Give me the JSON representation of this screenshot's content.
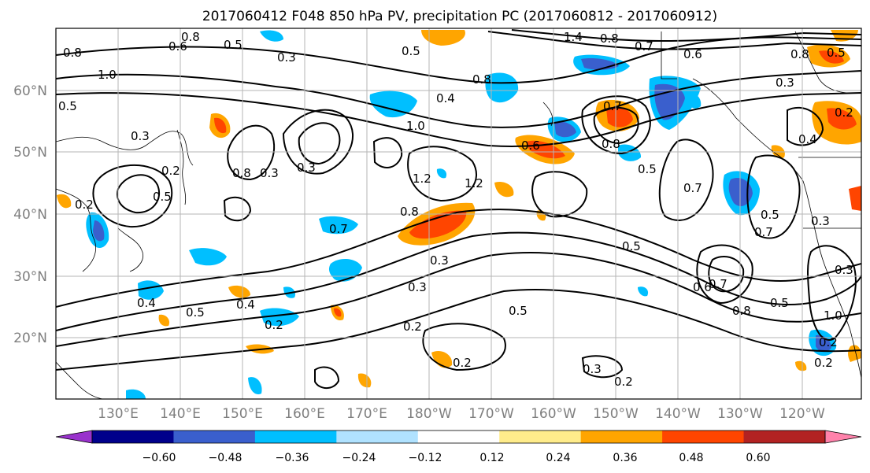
{
  "title": "2017060412 F048 850 hPa PV, precipitation PC (2017060812 - 2017060912)",
  "lat_labels": [
    "60°N",
    "50°N",
    "40°N",
    "30°N",
    "20°N"
  ],
  "lon_labels": [
    "130°E",
    "140°E",
    "150°E",
    "160°E",
    "170°E",
    "180°W",
    "170°W",
    "160°W",
    "150°W",
    "140°W",
    "130°W",
    "120°W"
  ],
  "colorbar": {
    "colors": [
      "#9932cc",
      "#00008b",
      "#3a5fcd",
      "#00bfff",
      "#b0e2ff",
      "#ffffff",
      "#ffec8b",
      "#ffa500",
      "#ff4500",
      "#b22222",
      "#ff82ab"
    ],
    "tick_labels": [
      "−0.60",
      "−0.48",
      "−0.36",
      "−0.24",
      "−0.12",
      "0.12",
      "0.24",
      "0.36",
      "0.48",
      "0.60"
    ]
  },
  "contour_labels": [
    "0.8",
    "0.6",
    "0.5",
    "0.3",
    "1.4",
    "0.8",
    "0.7",
    "0.6",
    "0.8",
    "0.5",
    "0.8",
    "1.0",
    "0.5",
    "0.8",
    "0.3",
    "0.3",
    "0.4",
    "1.0",
    "0.3",
    "0.2",
    "0.5",
    "0.2",
    "0.8",
    "0.3",
    "0.5",
    "0.7",
    "0.8",
    "1.2",
    "1.2",
    "0.6",
    "0.7",
    "0.8",
    "0.5",
    "0.7",
    "0.4",
    "0.2",
    "0.5",
    "0.4",
    "0.7",
    "0.5",
    "0.3",
    "0.3",
    "0.5",
    "0.3",
    "0.2",
    "0.2",
    "0.2",
    "0.7",
    "0.6",
    "0.5",
    "0.8",
    "0.5",
    "0.3",
    "0.2",
    "1.0",
    "0.2",
    "0.2",
    "0.3",
    "0.4"
  ]
}
